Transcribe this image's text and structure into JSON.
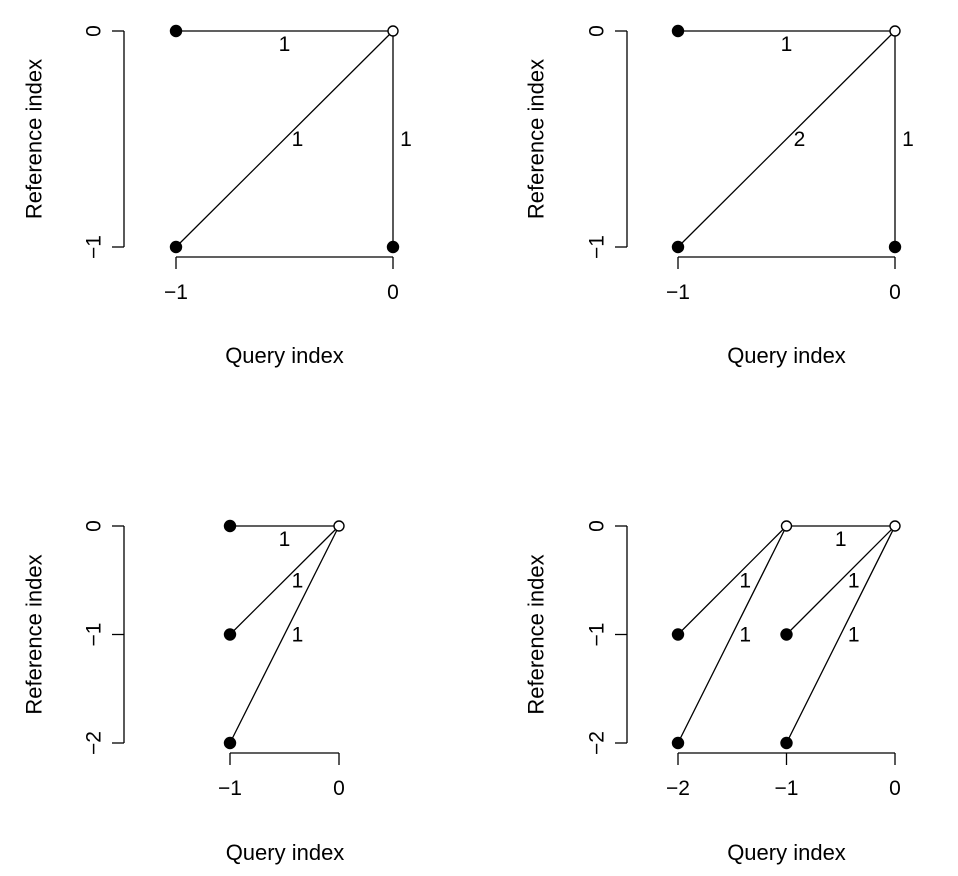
{
  "figure": {
    "x_axis_title": "Query index",
    "y_axis_title": "Reference index"
  },
  "panels": [
    {
      "id": "top-left",
      "x_ticks": [
        "−1",
        "0"
      ],
      "y_ticks": [
        "0",
        "−1"
      ],
      "x_range": [
        -1,
        0
      ],
      "y_range": [
        -1,
        0
      ],
      "nodes": [
        {
          "x": -1,
          "y": 0,
          "filled": true
        },
        {
          "x": 0,
          "y": 0,
          "filled": false
        },
        {
          "x": -1,
          "y": -1,
          "filled": true
        },
        {
          "x": 0,
          "y": -1,
          "filled": true
        }
      ],
      "edges": [
        {
          "from": [
            -1,
            0
          ],
          "to": [
            0,
            0
          ],
          "weight": "1"
        },
        {
          "from": [
            -1,
            -1
          ],
          "to": [
            0,
            0
          ],
          "weight": "1"
        },
        {
          "from": [
            0,
            -1
          ],
          "to": [
            0,
            0
          ],
          "weight": "1"
        }
      ]
    },
    {
      "id": "top-right",
      "x_ticks": [
        "−1",
        "0"
      ],
      "y_ticks": [
        "0",
        "−1"
      ],
      "x_range": [
        -1,
        0
      ],
      "y_range": [
        -1,
        0
      ],
      "nodes": [
        {
          "x": -1,
          "y": 0,
          "filled": true
        },
        {
          "x": 0,
          "y": 0,
          "filled": false
        },
        {
          "x": -1,
          "y": -1,
          "filled": true
        },
        {
          "x": 0,
          "y": -1,
          "filled": true
        }
      ],
      "edges": [
        {
          "from": [
            -1,
            0
          ],
          "to": [
            0,
            0
          ],
          "weight": "1"
        },
        {
          "from": [
            -1,
            -1
          ],
          "to": [
            0,
            0
          ],
          "weight": "2"
        },
        {
          "from": [
            0,
            -1
          ],
          "to": [
            0,
            0
          ],
          "weight": "1"
        }
      ]
    },
    {
      "id": "bottom-left",
      "x_ticks": [
        "−1",
        "0"
      ],
      "y_ticks": [
        "0",
        "−1",
        "−2"
      ],
      "x_range": [
        -1,
        0
      ],
      "y_range": [
        -2,
        0
      ],
      "nodes": [
        {
          "x": -1,
          "y": 0,
          "filled": true
        },
        {
          "x": 0,
          "y": 0,
          "filled": false
        },
        {
          "x": -1,
          "y": -1,
          "filled": true
        },
        {
          "x": -1,
          "y": -2,
          "filled": true
        }
      ],
      "edges": [
        {
          "from": [
            -1,
            0
          ],
          "to": [
            0,
            0
          ],
          "weight": "1"
        },
        {
          "from": [
            -1,
            -1
          ],
          "to": [
            0,
            0
          ],
          "weight": "1"
        },
        {
          "from": [
            -1,
            -2
          ],
          "to": [
            0,
            0
          ],
          "weight": "1"
        }
      ]
    },
    {
      "id": "bottom-right",
      "x_ticks": [
        "−2",
        "−1",
        "0"
      ],
      "y_ticks": [
        "0",
        "−1",
        "−2"
      ],
      "x_range": [
        -2,
        0
      ],
      "y_range": [
        -2,
        0
      ],
      "nodes": [
        {
          "x": -1,
          "y": 0,
          "filled": false
        },
        {
          "x": 0,
          "y": 0,
          "filled": false
        },
        {
          "x": -2,
          "y": -1,
          "filled": true
        },
        {
          "x": -1,
          "y": -1,
          "filled": true
        },
        {
          "x": -2,
          "y": -2,
          "filled": true
        },
        {
          "x": -1,
          "y": -2,
          "filled": true
        }
      ],
      "edges": [
        {
          "from": [
            -1,
            0
          ],
          "to": [
            0,
            0
          ],
          "weight": "1"
        },
        {
          "from": [
            -2,
            -1
          ],
          "to": [
            -1,
            0
          ],
          "weight": "1"
        },
        {
          "from": [
            -2,
            -2
          ],
          "to": [
            -1,
            0
          ],
          "weight": "1"
        },
        {
          "from": [
            -1,
            -1
          ],
          "to": [
            0,
            0
          ],
          "weight": "1"
        },
        {
          "from": [
            -1,
            -2
          ],
          "to": [
            0,
            0
          ],
          "weight": "1"
        }
      ]
    }
  ]
}
